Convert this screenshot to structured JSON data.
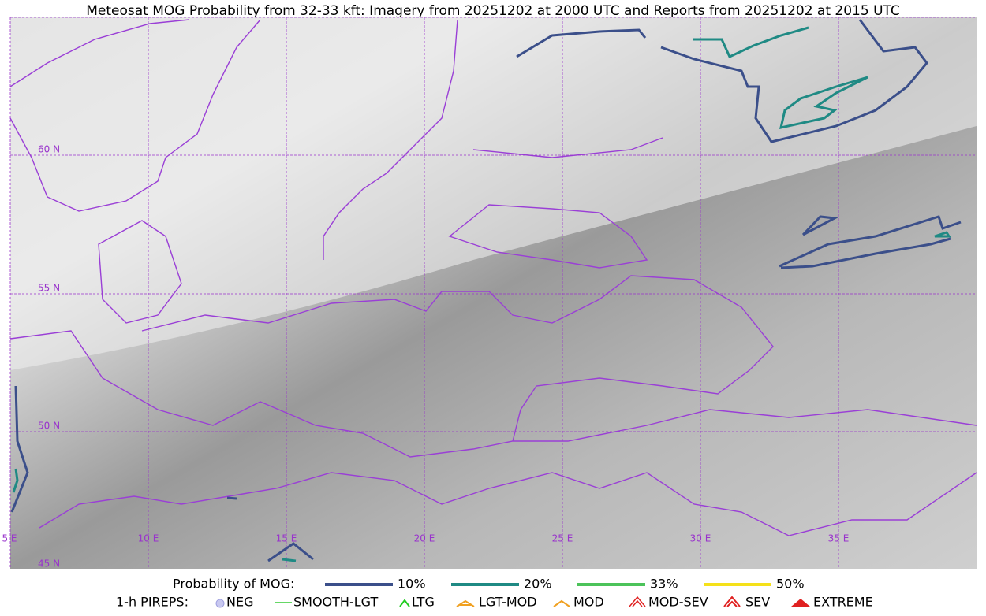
{
  "title": "Meteosat MOG Probability from 32-33 kft: Imagery from 20251202 at 2000 UTC and Reports from 20251202 at 2015 UTC",
  "grid_labels": {
    "lat": [
      "60 N",
      "55 N",
      "50 N",
      "45 N"
    ],
    "lon": [
      "5 E",
      "10 E",
      "15 E",
      "20 E",
      "25 E",
      "30 E",
      "35 E"
    ]
  },
  "legend": {
    "mog_title": "Probability of MOG:",
    "mog_items": [
      "10%",
      "20%",
      "33%",
      "50%"
    ],
    "pirep_title": "1-h PIREPS:",
    "pirep_items": [
      "NEG",
      "SMOOTH-LGT",
      "LTG",
      "LGT-MOD",
      "MOD",
      "MOD-SEV",
      "SEV",
      "EXTREME"
    ]
  }
}
